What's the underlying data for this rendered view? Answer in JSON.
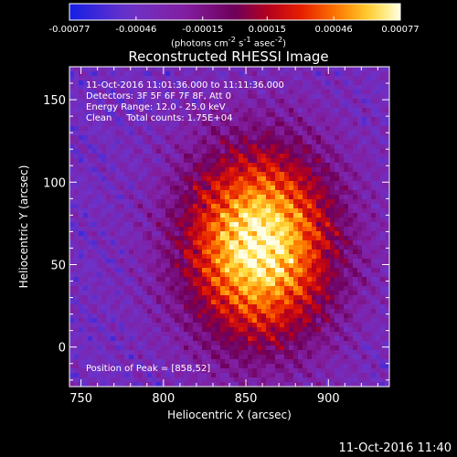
{
  "chart_data": {
    "type": "heatmap",
    "title": "Reconstructed RHESSI Image",
    "xlabel": "Heliocentric X (arcsec)",
    "ylabel": "Heliocentric Y (arcsec)",
    "xlim": [
      743,
      937
    ],
    "ylim": [
      -24,
      170
    ],
    "xticks": [
      "750",
      "800",
      "850",
      "900"
    ],
    "xtick_values": [
      750,
      800,
      850,
      900
    ],
    "yticks": [
      "0",
      "50",
      "100",
      "150"
    ],
    "ytick_values": [
      0,
      50,
      100,
      150
    ],
    "peak": [
      858,
      52
    ],
    "colorbar": {
      "min": -0.00077,
      "max": 0.00077,
      "tick_labels": [
        "-0.00077",
        "-0.00046",
        "-0.00015",
        "0.00015",
        "0.00046",
        "0.00077"
      ],
      "tick_values": [
        -0.00077,
        -0.00046,
        -0.00015,
        0.00015,
        0.00046,
        0.00077
      ],
      "units_prefix": "(photons cm",
      "units_exp1": "-2",
      "units_mid": " s",
      "units_exp2": "-1",
      "units_mid2": " asec",
      "units_exp3": "-2",
      "units_suffix": ")"
    },
    "colormap": "RHESSI rainbow (blue-purple-red-orange-yellow-white)"
  },
  "annotation": {
    "time_range": "11-Oct-2016 11:01:36.000 to 11:11:36.000",
    "detectors": "Detectors: 3F 5F 6F 7F 8F, Att 0",
    "energy": "Energy Range: 12.0 - 25.0 keV",
    "method": "Clean     Total counts: 1.75E+04",
    "peak": "Position of Peak = [858,52]"
  },
  "footer": {
    "timestamp": "11-Oct-2016 11:40"
  }
}
